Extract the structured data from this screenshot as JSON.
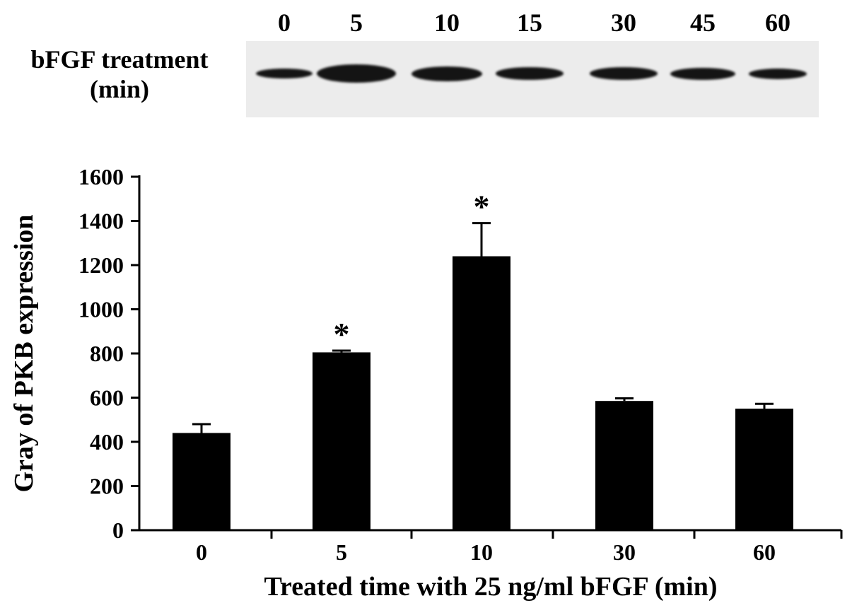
{
  "blot": {
    "label_line1": "bFGF treatment",
    "label_line2": "(min)",
    "lanes": [
      "0",
      "5",
      "10",
      "15",
      "30",
      "45",
      "60"
    ]
  },
  "chart_data": {
    "type": "bar",
    "categories": [
      "0",
      "5",
      "10",
      "30",
      "60"
    ],
    "values": [
      440,
      805,
      1240,
      585,
      550
    ],
    "errors": [
      40,
      8,
      150,
      12,
      22
    ],
    "significant": [
      false,
      true,
      true,
      false,
      false
    ],
    "significance_marker": "*",
    "ylim": [
      0,
      1600
    ],
    "yticks": [
      0,
      200,
      400,
      600,
      800,
      1000,
      1200,
      1400,
      1600
    ],
    "xlabel": "Treated time with 25 ng/ml bFGF (min)",
    "ylabel": "Gray of PKB expression",
    "bar_color": "#000000"
  }
}
